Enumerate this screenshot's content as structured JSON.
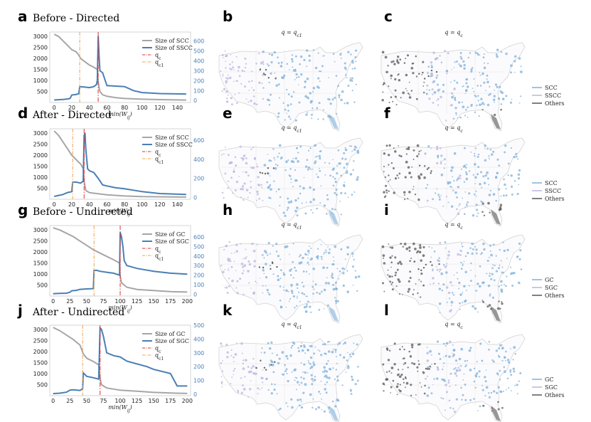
{
  "colors": {
    "scc": "#a6a6a6",
    "sscc": "#4a7fb5",
    "qc": "#e03030",
    "qc1": "#f0a050",
    "map_blue": "#7fb0da",
    "map_purple": "#bbb4dd",
    "map_gray": "#555555"
  },
  "chart_data": [
    {
      "type": "line",
      "panel": "a",
      "title": "Before - Directed",
      "xlabel": "min(W_ij)",
      "xticks": [
        0,
        20,
        40,
        60,
        80,
        100,
        120,
        140
      ],
      "xlim": [
        -5,
        155
      ],
      "yticks_left": [
        500,
        1000,
        1500,
        2000,
        2500,
        3000
      ],
      "ylim_left": [
        0,
        3200
      ],
      "yticks_right": [
        0,
        100,
        200,
        300,
        400,
        500,
        600
      ],
      "ylim_right": [
        -20,
        690
      ],
      "series": [
        {
          "name": "Size of SCC",
          "axis": "left",
          "x": [
            0,
            5,
            10,
            15,
            20,
            25,
            28,
            30,
            35,
            40,
            45,
            49,
            50,
            52,
            55,
            60,
            70,
            80,
            100,
            120,
            150
          ],
          "values": [
            3100,
            3000,
            2800,
            2600,
            2400,
            2300,
            2150,
            2000,
            1850,
            1700,
            1600,
            1500,
            900,
            500,
            350,
            280,
            220,
            180,
            150,
            130,
            110
          ]
        },
        {
          "name": "Size of SSCC",
          "axis": "right",
          "x": [
            0,
            5,
            10,
            15,
            18,
            20,
            25,
            28,
            29,
            35,
            40,
            45,
            48,
            49,
            50,
            51,
            52,
            55,
            58,
            60,
            70,
            80,
            90,
            100,
            110,
            120,
            150
          ],
          "values": [
            5,
            8,
            10,
            15,
            20,
            55,
            60,
            70,
            140,
            135,
            130,
            140,
            160,
            200,
            650,
            450,
            300,
            280,
            200,
            150,
            145,
            140,
            100,
            80,
            75,
            70,
            65
          ]
        }
      ],
      "vlines": [
        {
          "name": "q_c",
          "x": 50
        },
        {
          "name": "q_c1",
          "x": 29
        }
      ],
      "legend": [
        "Size of SCC",
        "Size of SSCC",
        "q_c",
        "q_c1"
      ]
    },
    {
      "type": "line",
      "panel": "d",
      "title": "After - Directed",
      "xlabel": "min(W_ij)",
      "xticks": [
        0,
        20,
        40,
        60,
        80,
        100,
        120,
        140
      ],
      "xlim": [
        -5,
        155
      ],
      "yticks_left": [
        500,
        1000,
        1500,
        2000,
        2500,
        3000
      ],
      "ylim_left": [
        0,
        3200
      ],
      "yticks_right": [
        0,
        200,
        400,
        600
      ],
      "ylim_right": [
        -20,
        720
      ],
      "series": [
        {
          "name": "Size of SCC",
          "axis": "left",
          "x": [
            0,
            5,
            10,
            15,
            20,
            25,
            30,
            33,
            34,
            36,
            40,
            50,
            60,
            80,
            100,
            150
          ],
          "values": [
            3100,
            2900,
            2600,
            2300,
            2000,
            1800,
            1600,
            1400,
            800,
            400,
            300,
            250,
            200,
            150,
            120,
            100
          ]
        },
        {
          "name": "Size of SSCC",
          "axis": "right",
          "x": [
            0,
            5,
            10,
            15,
            20,
            21,
            25,
            30,
            33,
            34,
            35,
            36,
            38,
            40,
            45,
            50,
            55,
            60,
            70,
            80,
            100,
            120,
            150
          ],
          "values": [
            10,
            20,
            30,
            50,
            60,
            160,
            160,
            150,
            170,
            650,
            680,
            500,
            300,
            280,
            260,
            200,
            130,
            120,
            100,
            90,
            60,
            40,
            30
          ]
        }
      ],
      "vlines": [
        {
          "name": "q_c",
          "x": 34
        },
        {
          "name": "q_c1",
          "x": 21
        }
      ],
      "legend": [
        "Size of SCC",
        "Size of SSCC",
        "q_c",
        "q_c1"
      ]
    },
    {
      "type": "line",
      "panel": "g",
      "title": "Before - Undirected",
      "xlabel": "min(W_ij)",
      "xticks": [
        0,
        25,
        50,
        75,
        100,
        125,
        150,
        175,
        200
      ],
      "xlim": [
        -5,
        205
      ],
      "yticks_left": [
        500,
        1000,
        1500,
        2000,
        2500,
        3000
      ],
      "ylim_left": [
        0,
        3200
      ],
      "yticks_right": [
        0,
        100,
        200,
        300,
        400,
        500,
        600
      ],
      "ylim_right": [
        -20,
        720
      ],
      "series": [
        {
          "name": "Size of GC",
          "axis": "left",
          "x": [
            0,
            10,
            20,
            30,
            40,
            50,
            60,
            70,
            80,
            90,
            99,
            100,
            102,
            110,
            125,
            150,
            175,
            200
          ],
          "values": [
            3100,
            3000,
            2850,
            2700,
            2500,
            2300,
            2100,
            1950,
            1800,
            1650,
            1500,
            900,
            600,
            400,
            300,
            250,
            200,
            180
          ]
        },
        {
          "name": "Size of SGC",
          "axis": "right",
          "x": [
            0,
            10,
            20,
            25,
            28,
            35,
            40,
            50,
            60,
            61,
            65,
            70,
            80,
            90,
            99,
            100,
            102,
            104,
            106,
            110,
            125,
            150,
            175,
            200
          ],
          "values": [
            5,
            8,
            10,
            20,
            35,
            40,
            50,
            55,
            58,
            250,
            250,
            240,
            230,
            220,
            200,
            650,
            600,
            500,
            350,
            300,
            270,
            240,
            220,
            210
          ]
        }
      ],
      "vlines": [
        {
          "name": "q_c",
          "x": 100
        },
        {
          "name": "q_c1",
          "x": 61
        }
      ],
      "legend": [
        "Size of GC",
        "Size of SGC",
        "q_c",
        "q_c1"
      ]
    },
    {
      "type": "line",
      "panel": "j",
      "title": "After - Undirected",
      "xlabel": "min(W_ij)",
      "xticks": [
        0,
        25,
        50,
        75,
        100,
        125,
        150,
        175,
        200
      ],
      "xlim": [
        -5,
        205
      ],
      "yticks_left": [
        500,
        1000,
        1500,
        2000,
        2500,
        3000
      ],
      "ylim_left": [
        0,
        3200
      ],
      "yticks_right": [
        0,
        100,
        200,
        300,
        400,
        500
      ],
      "ylim_right": [
        -10,
        500
      ],
      "series": [
        {
          "name": "Size of GC",
          "axis": "left",
          "x": [
            0,
            10,
            20,
            30,
            40,
            45,
            50,
            60,
            68,
            70,
            72,
            80,
            100,
            125,
            150,
            175,
            200
          ],
          "values": [
            3100,
            2950,
            2750,
            2550,
            2300,
            1900,
            1700,
            1550,
            1400,
            800,
            500,
            350,
            250,
            200,
            150,
            120,
            100
          ]
        },
        {
          "name": "Size of SGC",
          "axis": "right",
          "x": [
            0,
            10,
            20,
            25,
            30,
            40,
            44,
            45,
            50,
            60,
            68,
            70,
            72,
            75,
            80,
            90,
            100,
            110,
            125,
            140,
            150,
            175,
            185,
            200
          ],
          "values": [
            5,
            8,
            15,
            30,
            32,
            28,
            40,
            155,
            130,
            120,
            110,
            480,
            470,
            420,
            300,
            280,
            270,
            240,
            220,
            200,
            180,
            150,
            60,
            60
          ]
        }
      ],
      "vlines": [
        {
          "name": "q_c",
          "x": 70
        },
        {
          "name": "q_c1",
          "x": 44
        }
      ],
      "legend": [
        "Size of GC",
        "Size of SGC",
        "q_c",
        "q_c1"
      ]
    }
  ],
  "maps": [
    {
      "panel": "b",
      "title": "q = q_c1",
      "legend": []
    },
    {
      "panel": "c",
      "title": "q = q_c",
      "legend": [
        "SCC",
        "SSCC",
        "Others"
      ]
    },
    {
      "panel": "e",
      "title": "q = q_c1",
      "legend": []
    },
    {
      "panel": "f",
      "title": "q = q_c",
      "legend": [
        "SCC",
        "SSCC",
        "Others"
      ]
    },
    {
      "panel": "h",
      "title": "q = q_c1",
      "legend": []
    },
    {
      "panel": "i",
      "title": "q = q_c",
      "legend": [
        "GC",
        "SGC",
        "Others"
      ]
    },
    {
      "panel": "k",
      "title": "q = q_c1",
      "legend": []
    },
    {
      "panel": "l",
      "title": "q = q_c",
      "legend": [
        "GC",
        "SGC",
        "Others"
      ]
    }
  ]
}
